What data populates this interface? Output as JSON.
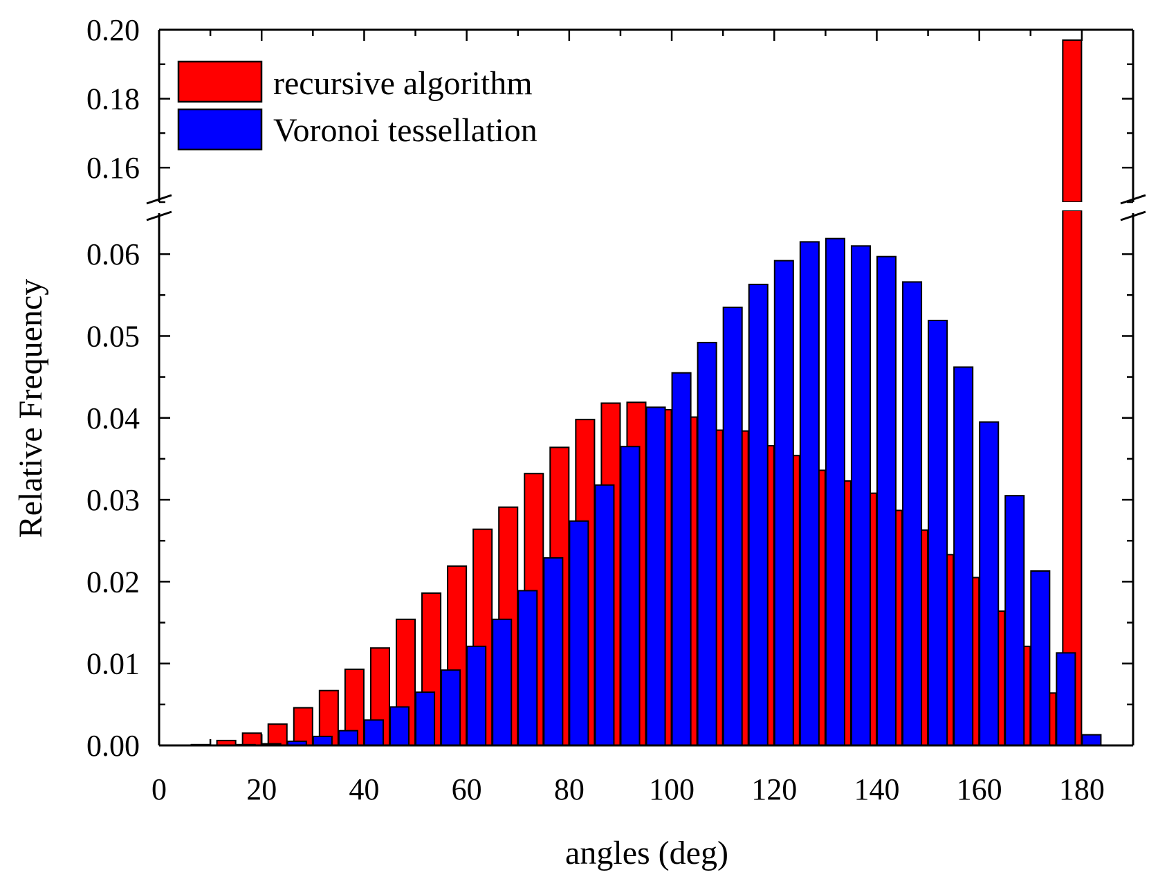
{
  "chart_data": {
    "type": "bar",
    "xlabel": "angles (deg)",
    "ylabel": "Relative Frequency",
    "xlim": [
      0,
      190
    ],
    "xticks": [
      "0",
      "20",
      "40",
      "60",
      "80",
      "100",
      "120",
      "140",
      "160",
      "180"
    ],
    "ylim_lower": [
      0,
      0.065
    ],
    "ylim_upper": [
      0.15,
      0.2
    ],
    "yticks_lower": [
      "0.00",
      "0.01",
      "0.02",
      "0.03",
      "0.04",
      "0.05",
      "0.06"
    ],
    "yticks_upper": [
      "0.16",
      "0.18",
      "0.20"
    ],
    "axis_break": true,
    "grid": false,
    "legend_position": "top-left",
    "series": [
      {
        "name": "recursive algorithm",
        "color": "#ff0000",
        "x": [
          10,
          15,
          20,
          25,
          30,
          35,
          40,
          45,
          50,
          55,
          60,
          65,
          70,
          75,
          80,
          85,
          90,
          95,
          100,
          105,
          110,
          115,
          120,
          125,
          130,
          135,
          140,
          145,
          150,
          155,
          160,
          165,
          170,
          175,
          180
        ],
        "values": [
          0.0001,
          0.0006,
          0.0015,
          0.0026,
          0.0046,
          0.0067,
          0.0093,
          0.0119,
          0.0154,
          0.0186,
          0.0219,
          0.0264,
          0.0291,
          0.0332,
          0.0364,
          0.0398,
          0.0418,
          0.0419,
          0.041,
          0.0401,
          0.0385,
          0.0384,
          0.0366,
          0.0354,
          0.0336,
          0.0323,
          0.0308,
          0.0287,
          0.0263,
          0.0233,
          0.0205,
          0.0164,
          0.0121,
          0.0064,
          0.197
        ]
      },
      {
        "name": "Voronoi tessellation",
        "color": "#0000ff",
        "x": [
          10,
          15,
          20,
          25,
          30,
          35,
          40,
          45,
          50,
          55,
          60,
          65,
          70,
          75,
          80,
          85,
          90,
          95,
          100,
          105,
          110,
          115,
          120,
          125,
          130,
          135,
          140,
          145,
          150,
          155,
          160,
          165,
          170,
          175,
          180
        ],
        "values": [
          0.0,
          0.0001,
          0.0002,
          0.0005,
          0.0011,
          0.0018,
          0.0031,
          0.0047,
          0.0065,
          0.0092,
          0.0121,
          0.0154,
          0.0189,
          0.0229,
          0.0274,
          0.0318,
          0.0365,
          0.0413,
          0.0455,
          0.0492,
          0.0535,
          0.0563,
          0.0592,
          0.0615,
          0.0619,
          0.061,
          0.0597,
          0.0566,
          0.0519,
          0.0462,
          0.0395,
          0.0305,
          0.0213,
          0.0113,
          0.0013
        ]
      }
    ]
  }
}
